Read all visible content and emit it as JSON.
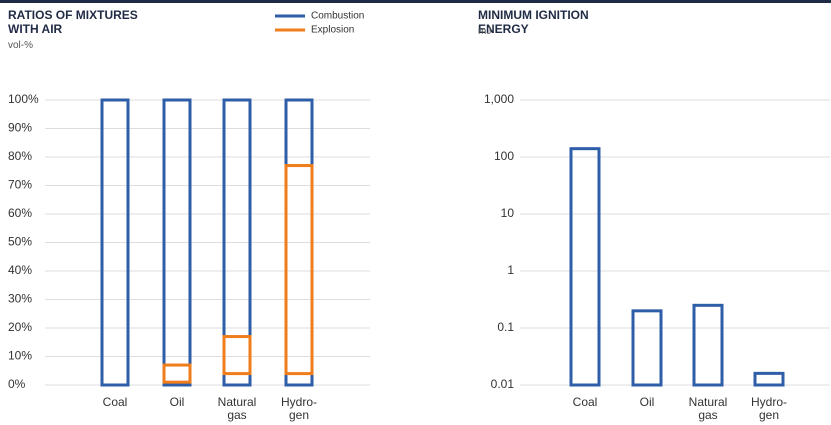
{
  "chart_data": [
    {
      "type": "range-bar",
      "title": "RATIOS OF MIXTURES WITH AIR",
      "subtitle": "vol-%",
      "categories": [
        "Coal",
        "Oil",
        "Natural gas",
        "Hydro-gen"
      ],
      "series": [
        {
          "name": "Combustion",
          "color": "#2f5ea8",
          "low": [
            0,
            0,
            0,
            0
          ],
          "high": [
            100,
            100,
            100,
            100
          ]
        },
        {
          "name": "Explosion",
          "color": "#ee7d1a",
          "low": [
            null,
            1,
            4,
            4
          ],
          "high": [
            null,
            7,
            17,
            77
          ]
        }
      ],
      "ylim": [
        0,
        100
      ],
      "yticks": [
        {
          "value": 0,
          "label": "0%"
        },
        {
          "value": 10,
          "label": "10%"
        },
        {
          "value": 20,
          "label": "20%"
        },
        {
          "value": 30,
          "label": "30%"
        },
        {
          "value": 40,
          "label": "40%"
        },
        {
          "value": 50,
          "label": "50%"
        },
        {
          "value": 60,
          "label": "60%"
        },
        {
          "value": 70,
          "label": "70%"
        },
        {
          "value": 80,
          "label": "80%"
        },
        {
          "value": 90,
          "label": "90%"
        },
        {
          "value": 100,
          "label": "100%"
        }
      ],
      "grid": true
    },
    {
      "type": "bar",
      "title": "MINIMUM IGNITION ENERGY",
      "subtitle": "mJ",
      "categories": [
        "Coal",
        "Oil",
        "Natural gas",
        "Hydro-gen"
      ],
      "values": [
        140,
        0.2,
        0.25,
        0.016
      ],
      "color": "#2f5ea8",
      "log_scale": true,
      "ylim": [
        0.01,
        1000
      ],
      "yticks": [
        0.01,
        0.1,
        1,
        10,
        100,
        {
          "value": 1000,
          "label": "1,000"
        }
      ],
      "grid": true
    }
  ]
}
